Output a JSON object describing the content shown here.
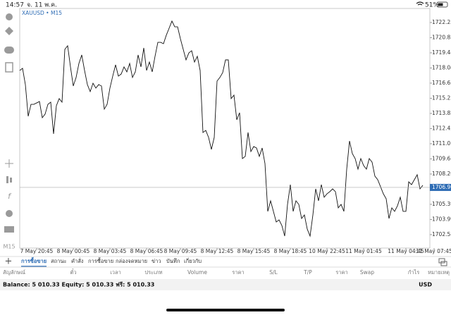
{
  "status_bar": {
    "time": "14:57",
    "date": "จ. 11 พ.ค.",
    "battery": "51%"
  },
  "toolbar_label": "M15",
  "chart_data": {
    "type": "line",
    "title": "XAUUSD • M15",
    "color": "#111111",
    "categories": [
      null,
      null,
      null,
      null,
      null,
      null,
      "7 May 20:45",
      null,
      null,
      null,
      null,
      null,
      null,
      null,
      null,
      null,
      null,
      null,
      null,
      "8 May 00:45",
      null,
      null,
      null,
      null,
      null,
      null,
      null,
      null,
      null,
      null,
      null,
      null,
      "8 May 03:45",
      null,
      null,
      null,
      null,
      null,
      null,
      null,
      null,
      null,
      null,
      null,
      null,
      "8 May 06:45",
      null,
      null,
      null,
      null,
      null,
      null,
      null,
      null,
      null,
      null,
      null,
      "8 May 09:45",
      null,
      null,
      null,
      null,
      null,
      null,
      null,
      null,
      null,
      null,
      null,
      null,
      "8 May 12:45",
      null,
      null,
      null,
      null,
      null,
      null,
      null,
      null,
      null,
      null,
      null,
      null,
      "8 May 15:45",
      null,
      null,
      null,
      null,
      null,
      null,
      null,
      null,
      null,
      null,
      null,
      null,
      "8 May 18:45",
      null,
      null,
      null,
      null,
      null,
      null,
      null,
      null,
      null,
      null,
      null,
      null,
      "10 May 22:45",
      null,
      null,
      null,
      null,
      null,
      null,
      null,
      null,
      null,
      null,
      null,
      null,
      "11 May 01:45",
      null,
      null,
      null,
      null,
      null,
      null,
      null,
      null,
      null,
      null,
      null,
      null,
      null,
      null,
      "11 May 04:45",
      null,
      null,
      null,
      null,
      null,
      null,
      null,
      null,
      null,
      "11 May 07:45"
    ],
    "values": [
      1717.81,
      1718.01,
      1716.5,
      1713.56,
      1714.67,
      1714.67,
      1714.8,
      1714.93,
      1713.43,
      1713.76,
      1714.67,
      1714.87,
      1711.93,
      1714.54,
      1715.2,
      1714.87,
      1719.77,
      1720.1,
      1718.14,
      1716.37,
      1717.16,
      1718.46,
      1719.25,
      1717.81,
      1716.5,
      1715.85,
      1716.63,
      1716.18,
      1716.5,
      1716.37,
      1714.22,
      1714.67,
      1716.18,
      1717.29,
      1718.33,
      1717.29,
      1717.48,
      1718.14,
      1717.68,
      1718.46,
      1717.16,
      1717.68,
      1719.25,
      1718.14,
      1719.9,
      1717.81,
      1718.59,
      1717.68,
      1719.12,
      1720.42,
      1720.42,
      1720.29,
      1721.08,
      1721.73,
      1722.39,
      1721.86,
      1721.86,
      1720.75,
      1719.77,
      1718.79,
      1719.44,
      1719.64,
      1718.59,
      1719.12,
      1717.81,
      1712.06,
      1712.25,
      1711.6,
      1710.49,
      1711.6,
      1716.83,
      1717.16,
      1717.61,
      1718.79,
      1718.79,
      1715.2,
      1715.52,
      1713.24,
      1713.89,
      1709.64,
      1709.84,
      1712.06,
      1710.29,
      1710.75,
      1710.62,
      1709.84,
      1710.62,
      1709.18,
      1704.74,
      1705.72,
      1704.74,
      1703.76,
      1703.95,
      1703.43,
      1702.45,
      1705.39,
      1707.22,
      1704.74,
      1705.72,
      1705.39,
      1704.08,
      1704.41,
      1703.1,
      1702.45,
      1704.41,
      1706.83,
      1705.72,
      1707.22,
      1706.05,
      1706.37,
      1706.57,
      1706.83,
      1706.57,
      1705.07,
      1705.39,
      1704.74,
      1708.66,
      1711.27,
      1710.1,
      1709.64,
      1708.66,
      1709.64,
      1708.99,
      1708.66,
      1709.64,
      1709.31,
      1708.01,
      1707.68,
      1707.03,
      1706.37,
      1705.91,
      1704.08,
      1705.07,
      1704.74,
      1705.26,
      1706.05,
      1704.74,
      1704.74,
      1707.48,
      1707.22,
      1707.68,
      1708.14,
      1706.83,
      1707.16,
      null,
      null,
      null,
      null
    ],
    "ylim": [
      1701.34,
      1723.56
    ],
    "yticks": [
      1722.255,
      {
        "value": 1720.85,
        "label": "1720.850"
      },
      1719.445,
      1718.04,
      1716.635,
      1715.23,
      1713.825,
      1712.42,
      1711.015,
      {
        "value": 1709.61,
        "label": "1709.610"
      },
      1708.205,
      1705.395,
      1703.99,
      1702.585
    ],
    "current_price": 1706.962,
    "current_price_color": "#2f6db5",
    "grid": false
  },
  "tabs": [
    "การซื้อขาย",
    "สถานะ",
    "คำสั่ง",
    "การซื้อขาย",
    "กล่องจดหมาย",
    "ข่าว",
    "บันทึก",
    "เกี่ยวกับ"
  ],
  "table": {
    "columns": [
      "สัญลักษณ์",
      "ตั๋ว",
      "เวลา",
      "ประเภท",
      "Volume",
      "ราคา",
      "S/L",
      "T/P",
      "ราคา",
      "Swap",
      "กำไร",
      "หมายเหตุ"
    ]
  },
  "balance": {
    "text": "Balance: 5 010.33 Equity: 5 010.33 ฟรี: 5 010.33",
    "currency": "USD"
  }
}
